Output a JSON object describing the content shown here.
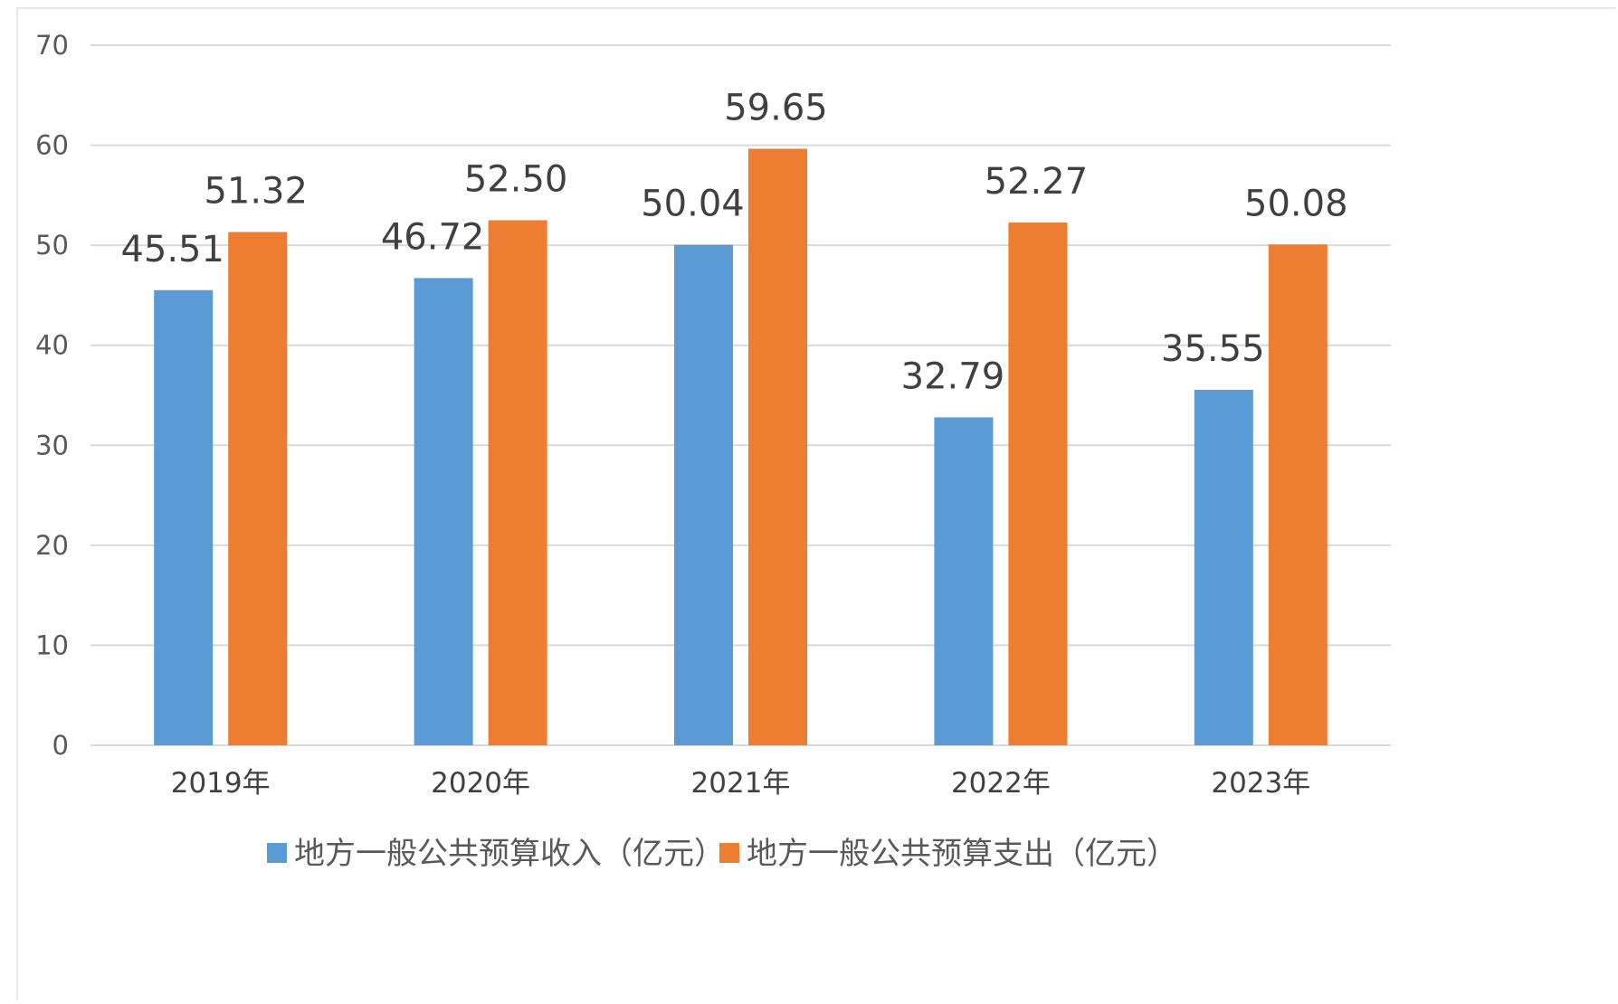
{
  "chart_data": {
    "type": "bar",
    "categories": [
      "2019年",
      "2020年",
      "2021年",
      "2022年",
      "2023年"
    ],
    "series": [
      {
        "name": "地方一般公共预算收入（亿元）",
        "color": "#5B9BD5",
        "values": [
          45.51,
          46.72,
          50.04,
          32.79,
          35.55
        ],
        "labels": [
          "45.51",
          "46.72",
          "50.04",
          "32.79",
          "35.55"
        ]
      },
      {
        "name": "地方一般公共预算支出（亿元）",
        "color": "#ED7D31",
        "values": [
          51.32,
          52.5,
          59.65,
          52.27,
          50.08
        ],
        "labels": [
          "51.32",
          "52.50",
          "59.65",
          "52.27",
          "50.08"
        ]
      }
    ],
    "yticks": [
      "0",
      "10",
      "20",
      "30",
      "40",
      "50",
      "60",
      "70"
    ],
    "ylim": [
      0,
      70
    ],
    "grid": true,
    "legend": "bottom"
  }
}
